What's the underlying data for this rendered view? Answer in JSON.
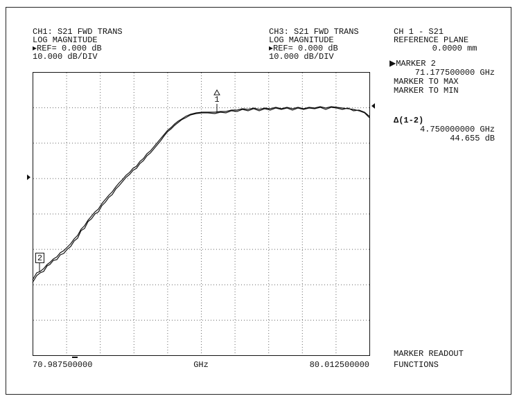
{
  "header_left": [
    "CH1: S21 FWD TRANS",
    "LOG MAGNITUDE",
    "▸REF= 0.000 dB",
    "10.000 dB/DIV"
  ],
  "header_right": [
    "CH3: S21 FWD TRANS",
    "LOG MAGNITUDE",
    "▸REF= 0.000 dB",
    "10.000 dB/DIV"
  ],
  "side_panel": {
    "channel": "CH 1 - S21",
    "items": [
      "REFERENCE PLANE",
      "0.0000 mm",
      "▶MARKER 2",
      "71.177500000 GHz",
      "MARKER TO MAX",
      "MARKER TO MIN"
    ],
    "delta": {
      "title": "Δ(1-2)",
      "frequency": "4.750000000 GHz",
      "level": "44.655 dB"
    },
    "footer": [
      "MARKER READOUT",
      "FUNCTIONS"
    ]
  },
  "axis": {
    "start": "70.987500000",
    "unit": "GHz",
    "stop": "80.012500000"
  },
  "markers": {
    "m1": "1",
    "m2": "2"
  }
}
